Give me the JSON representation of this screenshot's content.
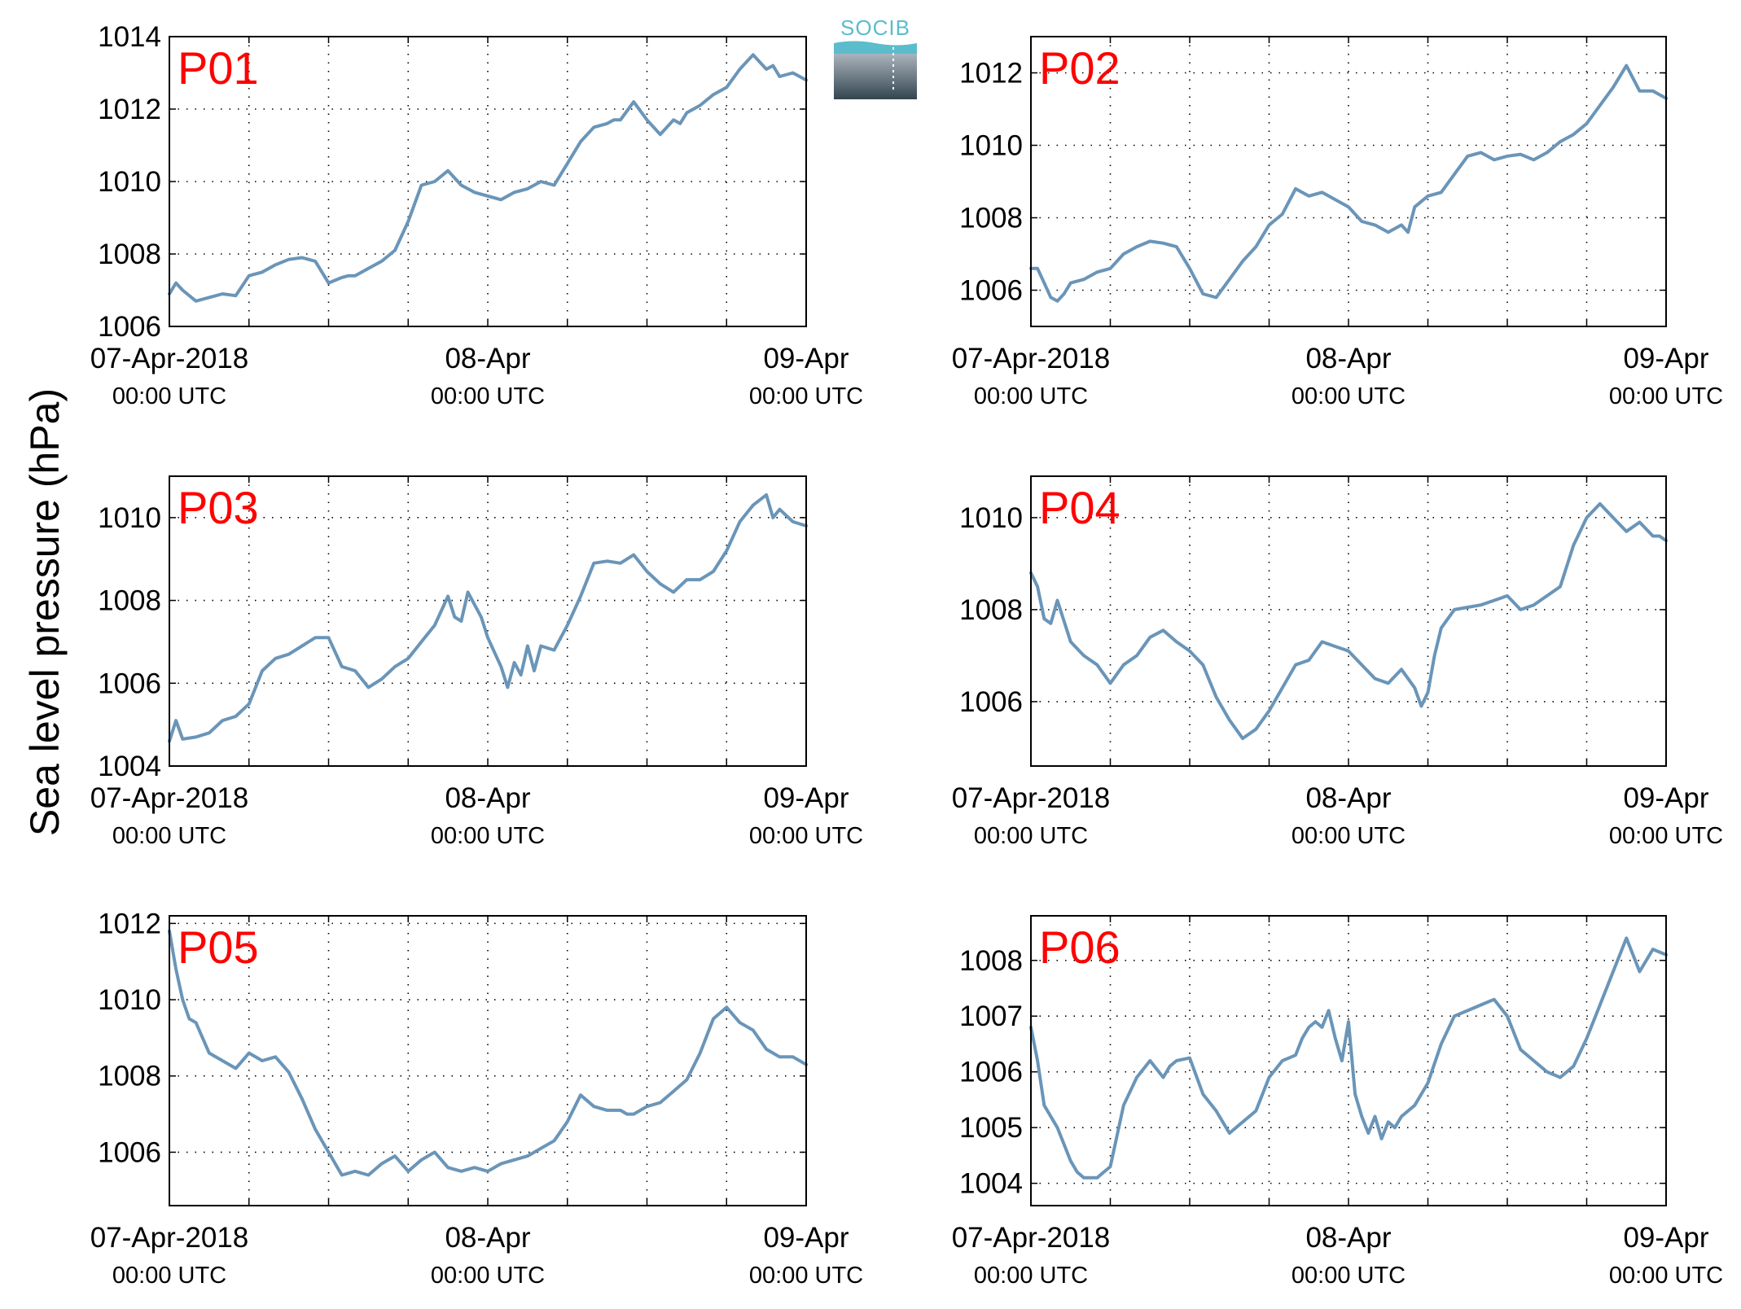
{
  "figure": {
    "ylabel": "Sea level pressure (hPa)",
    "logo_text": "SOCIB",
    "line_color": "#6a95b8",
    "label_color": "#ff0000"
  },
  "chart_data": [
    {
      "type": "line",
      "panel": "P01",
      "xlim": [
        0,
        48
      ],
      "ylim": [
        1006,
        1014
      ],
      "yticks": [
        1006,
        1008,
        1010,
        1012,
        1014
      ],
      "xticks": [
        {
          "x": 0,
          "l1": "07-Apr-2018",
          "l2": "00:00 UTC"
        },
        {
          "x": 24,
          "l1": "08-Apr",
          "l2": "00:00 UTC"
        },
        {
          "x": 48,
          "l1": "09-Apr",
          "l2": "00:00 UTC"
        }
      ],
      "x": [
        0,
        0.5,
        1,
        2,
        3,
        4,
        5,
        6,
        7,
        8,
        9,
        10,
        11,
        12,
        13,
        13.5,
        14,
        15,
        16,
        17,
        18,
        19,
        20,
        21,
        22,
        23,
        24,
        25,
        26,
        27,
        28,
        29,
        30,
        31,
        32,
        33,
        33.5,
        34,
        35,
        36,
        37,
        38,
        38.5,
        39,
        40,
        41,
        42,
        43,
        44,
        45,
        45.5,
        46,
        47,
        48
      ],
      "y": [
        1006.9,
        1007.2,
        1007.0,
        1006.7,
        1006.8,
        1006.9,
        1006.85,
        1007.4,
        1007.5,
        1007.7,
        1007.85,
        1007.9,
        1007.8,
        1007.2,
        1007.35,
        1007.4,
        1007.4,
        1007.6,
        1007.8,
        1008.1,
        1008.9,
        1009.9,
        1010.0,
        1010.3,
        1009.9,
        1009.7,
        1009.6,
        1009.5,
        1009.7,
        1009.8,
        1010.0,
        1009.9,
        1010.5,
        1011.1,
        1011.5,
        1011.6,
        1011.7,
        1011.7,
        1012.2,
        1011.7,
        1011.3,
        1011.7,
        1011.6,
        1011.9,
        1012.1,
        1012.4,
        1012.6,
        1013.1,
        1013.5,
        1013.1,
        1013.2,
        1012.9,
        1013.0,
        1012.8
      ]
    },
    {
      "type": "line",
      "panel": "P02",
      "xlim": [
        0,
        48
      ],
      "ylim": [
        1005,
        1013
      ],
      "yticks": [
        1006,
        1008,
        1010,
        1012
      ],
      "xticks": [
        {
          "x": 0,
          "l1": "07-Apr-2018",
          "l2": "00:00 UTC"
        },
        {
          "x": 24,
          "l1": "08-Apr",
          "l2": "00:00 UTC"
        },
        {
          "x": 48,
          "l1": "09-Apr",
          "l2": "00:00 UTC"
        }
      ],
      "x": [
        0,
        0.5,
        1,
        1.5,
        2,
        2.5,
        3,
        4,
        5,
        6,
        7,
        8,
        9,
        10,
        11,
        12,
        13,
        14,
        15,
        16,
        17,
        18,
        19,
        20,
        21,
        22,
        23,
        24,
        25,
        26,
        27,
        28,
        28.5,
        29,
        30,
        31,
        32,
        33,
        34,
        35,
        36,
        37,
        38,
        39,
        40,
        41,
        42,
        43,
        44,
        45,
        46,
        47,
        48
      ],
      "y": [
        1006.6,
        1006.6,
        1006.2,
        1005.8,
        1005.7,
        1005.9,
        1006.2,
        1006.3,
        1006.5,
        1006.6,
        1007.0,
        1007.2,
        1007.35,
        1007.3,
        1007.2,
        1006.6,
        1005.9,
        1005.8,
        1006.3,
        1006.8,
        1007.2,
        1007.8,
        1008.1,
        1008.8,
        1008.6,
        1008.7,
        1008.5,
        1008.3,
        1007.9,
        1007.8,
        1007.6,
        1007.8,
        1007.6,
        1008.3,
        1008.6,
        1008.7,
        1009.2,
        1009.7,
        1009.8,
        1009.6,
        1009.7,
        1009.75,
        1009.6,
        1009.8,
        1010.1,
        1010.3,
        1010.6,
        1011.1,
        1011.6,
        1012.2,
        1011.5,
        1011.5,
        1011.3
      ]
    },
    {
      "type": "line",
      "panel": "P03",
      "xlim": [
        0,
        48
      ],
      "ylim": [
        1004,
        1011
      ],
      "yticks": [
        1004,
        1006,
        1008,
        1010
      ],
      "xticks": [
        {
          "x": 0,
          "l1": "07-Apr-2018",
          "l2": "00:00 UTC"
        },
        {
          "x": 24,
          "l1": "08-Apr",
          "l2": "00:00 UTC"
        },
        {
          "x": 48,
          "l1": "09-Apr",
          "l2": "00:00 UTC"
        }
      ],
      "x": [
        0,
        0.5,
        1,
        2,
        3,
        4,
        5,
        6,
        7,
        8,
        9,
        10,
        11,
        12,
        13,
        14,
        15,
        16,
        17,
        18,
        19,
        20,
        21,
        21.5,
        22,
        22.5,
        23,
        23.5,
        24,
        25,
        25.5,
        26,
        26.5,
        27,
        27.5,
        28,
        29,
        30,
        31,
        32,
        33,
        34,
        35,
        36,
        37,
        38,
        39,
        40,
        41,
        42,
        43,
        44,
        45,
        45.5,
        46,
        47,
        48
      ],
      "y": [
        1004.6,
        1005.1,
        1004.65,
        1004.7,
        1004.8,
        1005.1,
        1005.2,
        1005.5,
        1006.3,
        1006.6,
        1006.7,
        1006.9,
        1007.1,
        1007.1,
        1006.4,
        1006.3,
        1005.9,
        1006.1,
        1006.4,
        1006.6,
        1007.0,
        1007.4,
        1008.1,
        1007.6,
        1007.5,
        1008.2,
        1007.9,
        1007.6,
        1007.1,
        1006.4,
        1005.9,
        1006.5,
        1006.2,
        1006.9,
        1006.3,
        1006.9,
        1006.8,
        1007.4,
        1008.1,
        1008.9,
        1008.95,
        1008.9,
        1009.1,
        1008.7,
        1008.4,
        1008.2,
        1008.5,
        1008.5,
        1008.7,
        1009.2,
        1009.9,
        1010.3,
        1010.55,
        1010.0,
        1010.2,
        1009.9,
        1009.8
      ]
    },
    {
      "type": "line",
      "panel": "P04",
      "xlim": [
        0,
        48
      ],
      "ylim": [
        1004.6,
        1010.9
      ],
      "yticks": [
        1006,
        1008,
        1010
      ],
      "xticks": [
        {
          "x": 0,
          "l1": "07-Apr-2018",
          "l2": "00:00 UTC"
        },
        {
          "x": 24,
          "l1": "08-Apr",
          "l2": "00:00 UTC"
        },
        {
          "x": 48,
          "l1": "09-Apr",
          "l2": "00:00 UTC"
        }
      ],
      "x": [
        0,
        0.5,
        1,
        1.5,
        2,
        3,
        4,
        5,
        6,
        7,
        8,
        9,
        10,
        11,
        12,
        13,
        14,
        15,
        16,
        17,
        18,
        19,
        20,
        21,
        22,
        23,
        24,
        25,
        26,
        27,
        28,
        29,
        29.5,
        30,
        30.5,
        31,
        32,
        33,
        34,
        35,
        36,
        37,
        38,
        39,
        40,
        41,
        42,
        43,
        44,
        45,
        46,
        47,
        47.5,
        48
      ],
      "y": [
        1008.8,
        1008.5,
        1007.8,
        1007.7,
        1008.2,
        1007.3,
        1007.0,
        1006.8,
        1006.4,
        1006.8,
        1007.0,
        1007.4,
        1007.55,
        1007.3,
        1007.1,
        1006.8,
        1006.1,
        1005.6,
        1005.2,
        1005.4,
        1005.8,
        1006.3,
        1006.8,
        1006.9,
        1007.3,
        1007.2,
        1007.1,
        1006.8,
        1006.5,
        1006.4,
        1006.7,
        1006.3,
        1005.9,
        1006.2,
        1007.0,
        1007.6,
        1008.0,
        1008.05,
        1008.1,
        1008.2,
        1008.3,
        1008.0,
        1008.1,
        1008.3,
        1008.5,
        1009.4,
        1010.0,
        1010.3,
        1010.0,
        1009.7,
        1009.9,
        1009.6,
        1009.6,
        1009.5
      ]
    },
    {
      "type": "line",
      "panel": "P05",
      "xlim": [
        0,
        48
      ],
      "ylim": [
        1004.6,
        1012.2
      ],
      "yticks": [
        1006,
        1008,
        1010,
        1012
      ],
      "xticks": [
        {
          "x": 0,
          "l1": "07-Apr-2018",
          "l2": "00:00 UTC"
        },
        {
          "x": 24,
          "l1": "08-Apr",
          "l2": "00:00 UTC"
        },
        {
          "x": 48,
          "l1": "09-Apr",
          "l2": "00:00 UTC"
        }
      ],
      "x": [
        0,
        0.5,
        1,
        1.5,
        2,
        3,
        4,
        5,
        6,
        7,
        8,
        9,
        10,
        11,
        12,
        13,
        14,
        15,
        16,
        17,
        18,
        19,
        20,
        21,
        22,
        23,
        24,
        25,
        26,
        27,
        28,
        29,
        30,
        31,
        32,
        33,
        34,
        34.5,
        35,
        36,
        37,
        38,
        39,
        40,
        41,
        42,
        43,
        44,
        45,
        45.5,
        46,
        47,
        48
      ],
      "y": [
        1011.8,
        1010.8,
        1010.0,
        1009.5,
        1009.4,
        1008.6,
        1008.4,
        1008.2,
        1008.6,
        1008.4,
        1008.5,
        1008.1,
        1007.4,
        1006.6,
        1006.0,
        1005.4,
        1005.5,
        1005.4,
        1005.7,
        1005.9,
        1005.5,
        1005.8,
        1006.0,
        1005.6,
        1005.5,
        1005.6,
        1005.5,
        1005.7,
        1005.8,
        1005.9,
        1006.1,
        1006.3,
        1006.8,
        1007.5,
        1007.2,
        1007.1,
        1007.1,
        1007.0,
        1007.0,
        1007.2,
        1007.3,
        1007.6,
        1007.9,
        1008.6,
        1009.5,
        1009.8,
        1009.4,
        1009.2,
        1008.7,
        1008.6,
        1008.5,
        1008.5,
        1008.3
      ]
    },
    {
      "type": "line",
      "panel": "P06",
      "xlim": [
        0,
        48
      ],
      "ylim": [
        1003.6,
        1008.8
      ],
      "yticks": [
        1004,
        1005,
        1006,
        1007,
        1008
      ],
      "xticks": [
        {
          "x": 0,
          "l1": "07-Apr-2018",
          "l2": "00:00 UTC"
        },
        {
          "x": 24,
          "l1": "08-Apr",
          "l2": "00:00 UTC"
        },
        {
          "x": 48,
          "l1": "09-Apr",
          "l2": "00:00 UTC"
        }
      ],
      "x": [
        0,
        0.5,
        1,
        2,
        3,
        3.5,
        4,
        5,
        5.5,
        6,
        7,
        8,
        9,
        10,
        10.5,
        11,
        12,
        13,
        14,
        15,
        16,
        17,
        18,
        19,
        20,
        20.5,
        21,
        21.5,
        22,
        22.5,
        23,
        23.5,
        24,
        24.5,
        25,
        25.5,
        26,
        26.5,
        27,
        27.5,
        28,
        29,
        30,
        31,
        32,
        33,
        34,
        35,
        36,
        37,
        38,
        39,
        40,
        41,
        42,
        43,
        44,
        45,
        46,
        47,
        48
      ],
      "y": [
        1006.8,
        1006.2,
        1005.4,
        1005.0,
        1004.4,
        1004.2,
        1004.1,
        1004.1,
        1004.2,
        1004.3,
        1005.4,
        1005.9,
        1006.2,
        1005.9,
        1006.1,
        1006.2,
        1006.25,
        1005.6,
        1005.3,
        1004.9,
        1005.1,
        1005.3,
        1005.9,
        1006.2,
        1006.3,
        1006.6,
        1006.8,
        1006.9,
        1006.8,
        1007.1,
        1006.6,
        1006.2,
        1006.9,
        1005.6,
        1005.2,
        1004.9,
        1005.2,
        1004.8,
        1005.1,
        1005.0,
        1005.2,
        1005.4,
        1005.8,
        1006.5,
        1007.0,
        1007.1,
        1007.2,
        1007.3,
        1007.0,
        1006.4,
        1006.2,
        1006.0,
        1005.9,
        1006.1,
        1006.6,
        1007.2,
        1007.8,
        1008.4,
        1007.8,
        1008.2,
        1008.1
      ]
    }
  ]
}
